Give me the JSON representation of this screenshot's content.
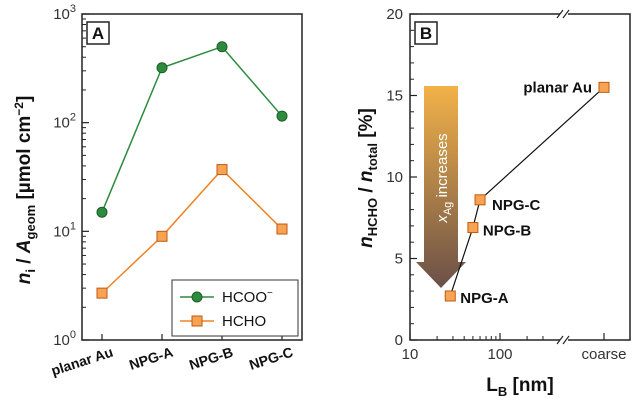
{
  "colors": {
    "hcoo": "#2e8b3e",
    "hcho": "#f08226",
    "hcho_fill": "#f7a354",
    "arrow_top": "#f2b248",
    "arrow_bottom": "#6a5048"
  },
  "panelA": {
    "label": "A",
    "ylabel_main": "n",
    "ylabel_sub_i": "i",
    "ylabel_slash": " / ",
    "ylabel_A": "A",
    "ylabel_sub_geom": "geom",
    "ylabel_unit": "  [µmol cm",
    "ylabel_unit_sup": "−2",
    "ylabel_unit_end": "]",
    "ytick_base": "10",
    "ytick_exps": [
      "0",
      "1",
      "2",
      "3"
    ],
    "legend": {
      "hcoo": "HCOO",
      "hcoo_sup": "−",
      "hcho": "HCHO"
    }
  },
  "panelB": {
    "label": "B",
    "ylabel_main": "n",
    "ylabel_sub_hcho": "HCHO",
    "ylabel_slash": " / ",
    "ylabel_n2": "n",
    "ylabel_sub_total": "total",
    "ylabel_unit": " [%]",
    "xlabel_main": "L",
    "xlabel_sub": "B",
    "xlabel_unit": " [nm]",
    "xticks": [
      "10",
      "100",
      "coarse"
    ],
    "yticks": [
      "0",
      "5",
      "10",
      "15",
      "20"
    ],
    "arrow_text_x": "x",
    "arrow_text_sub": "Ag",
    "arrow_text_rest": " increases",
    "point_labels": [
      "NPG-A",
      "NPG-B",
      "NPG-C",
      "planar Au"
    ]
  },
  "chart_data": [
    {
      "type": "line",
      "ylog": true,
      "ylim": [
        1,
        1000
      ],
      "categories": [
        "planar Au",
        "NPG-A",
        "NPG-B",
        "NPG-C"
      ],
      "series": [
        {
          "name": "HCOO−",
          "values": [
            15,
            320,
            500,
            115
          ]
        },
        {
          "name": "HCHO",
          "values": [
            2.7,
            9,
            37,
            10.5
          ]
        }
      ],
      "legend": "bottom-right"
    },
    {
      "type": "scatter",
      "xlog": true,
      "xlim": [
        10,
        1000
      ],
      "ylim": [
        0,
        20
      ],
      "x_break": "coarse",
      "points": [
        {
          "label": "NPG-A",
          "x": 28,
          "y": 2.7
        },
        {
          "label": "NPG-B",
          "x": 50,
          "y": 6.9
        },
        {
          "label": "NPG-C",
          "x": 60,
          "y": 8.6
        },
        {
          "label": "planar Au",
          "x": "coarse",
          "y": 15.5
        }
      ]
    }
  ]
}
